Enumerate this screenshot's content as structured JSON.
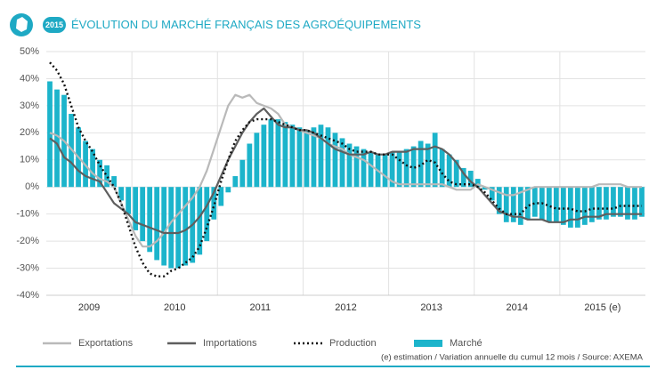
{
  "chart_data": {
    "type": "combo",
    "badge": "2015",
    "title": "ÉVOLUTION DU MARCHÉ FRANÇAIS DES AGROÉQUIPEMENTS",
    "note": "(e) estimation / Variation annuelle du cumul 12 mois / Source: AXEMA",
    "categories": [
      null,
      null,
      null,
      null,
      null,
      null,
      "2009",
      null,
      null,
      null,
      null,
      null,
      null,
      null,
      null,
      null,
      null,
      null,
      "2010",
      null,
      null,
      null,
      null,
      null,
      null,
      null,
      null,
      null,
      null,
      null,
      "2011",
      null,
      null,
      null,
      null,
      null,
      null,
      null,
      null,
      null,
      null,
      null,
      "2012",
      null,
      null,
      null,
      null,
      null,
      null,
      null,
      null,
      null,
      null,
      null,
      "2013",
      null,
      null,
      null,
      null,
      null,
      null,
      null,
      null,
      null,
      null,
      null,
      "2014",
      null,
      null,
      null,
      null,
      null,
      null,
      null,
      null,
      null,
      null,
      null,
      "2015 (e)",
      null,
      null,
      null,
      null,
      null
    ],
    "ylim": [
      -40,
      50
    ],
    "yticks": [
      {
        "value": -40,
        "label": "-40%"
      },
      {
        "value": -30,
        "label": "-30%"
      },
      {
        "value": -20,
        "label": "-20%"
      },
      {
        "value": -10,
        "label": "-10%"
      },
      {
        "value": 0,
        "label": "0%"
      },
      {
        "value": 10,
        "label": "10%"
      },
      {
        "value": 20,
        "label": "20%"
      },
      {
        "value": 30,
        "label": "30%"
      },
      {
        "value": 40,
        "label": "40%"
      },
      {
        "value": 50,
        "label": "50%"
      }
    ],
    "grid": true,
    "series": [
      {
        "name": "Exportations",
        "type": "line",
        "color": "#b9b9b9",
        "line_style": "solid",
        "values": [
          20,
          19,
          17,
          14,
          11,
          8,
          5,
          3,
          2,
          0,
          -6,
          -12,
          -18,
          -22,
          -22,
          -20,
          -17,
          -13,
          -10,
          -7,
          -4,
          0,
          6,
          14,
          22,
          30,
          34,
          33,
          34,
          31,
          30,
          29,
          27,
          23,
          22,
          21,
          20,
          19,
          18,
          16,
          15,
          14,
          12,
          11,
          10,
          8,
          6,
          4,
          2,
          1,
          1,
          1,
          1,
          1,
          1,
          1,
          0,
          -1,
          -1,
          -1,
          1,
          0,
          -1,
          -2,
          -3,
          -3,
          -2,
          -1,
          0,
          0,
          0,
          0,
          0,
          0,
          0,
          0,
          0,
          1,
          1,
          1,
          1,
          0,
          0,
          0
        ]
      },
      {
        "name": "Importations",
        "type": "line",
        "color": "#5e5e5e",
        "line_style": "solid",
        "values": [
          18,
          16,
          11,
          9,
          6,
          4,
          3,
          2,
          -2,
          -6,
          -8,
          -10,
          -13,
          -14,
          -15,
          -16,
          -17,
          -17,
          -17,
          -16,
          -14,
          -11,
          -7,
          -2,
          4,
          10,
          15,
          20,
          24,
          27,
          29,
          26,
          23,
          22,
          22,
          21,
          21,
          20,
          18,
          16,
          14,
          13,
          12,
          12,
          12,
          13,
          12,
          12,
          13,
          13,
          13,
          14,
          14,
          14,
          15,
          14,
          12,
          9,
          5,
          2,
          0,
          -3,
          -6,
          -9,
          -10,
          -11,
          -11,
          -12,
          -12,
          -12,
          -13,
          -13,
          -13,
          -12,
          -12,
          -11,
          -11,
          -11,
          -10,
          -10,
          -10,
          -10,
          -10,
          -10
        ]
      },
      {
        "name": "Production",
        "type": "line",
        "color": "#111111",
        "line_style": "dotted",
        "values": [
          46,
          43,
          38,
          30,
          22,
          17,
          13,
          8,
          4,
          0,
          -6,
          -14,
          -22,
          -28,
          -32,
          -33,
          -33,
          -31,
          -30,
          -28,
          -26,
          -22,
          -15,
          -7,
          2,
          10,
          17,
          21,
          24,
          25,
          25,
          25,
          24,
          23,
          22,
          21,
          21,
          20,
          19,
          18,
          17,
          16,
          14,
          13,
          13,
          13,
          12,
          12,
          12,
          10,
          8,
          7,
          8,
          10,
          9,
          5,
          2,
          1,
          1,
          1,
          0,
          -2,
          -5,
          -8,
          -10,
          -10,
          -10,
          -7,
          -6,
          -6,
          -7,
          -8,
          -8,
          -8,
          -9,
          -9,
          -8,
          -8,
          -8,
          -8,
          -7,
          -7,
          -7,
          -7
        ]
      },
      {
        "name": "Marché",
        "type": "bar",
        "color": "#1cb4cb",
        "values": [
          39,
          36,
          34,
          27,
          22,
          17,
          14,
          10,
          8,
          4,
          -5,
          -10,
          -16,
          -20,
          -24,
          -27,
          -29,
          -30,
          -30,
          -29,
          -28,
          -25,
          -20,
          -12,
          -7,
          -2,
          4,
          10,
          16,
          20,
          23,
          25,
          25,
          24,
          23,
          22,
          21,
          22,
          23,
          22,
          20,
          18,
          16,
          15,
          14,
          13,
          12,
          12,
          13,
          13,
          14,
          15,
          17,
          16,
          20,
          14,
          12,
          10,
          7,
          6,
          3,
          -1,
          -5,
          -10,
          -13,
          -13,
          -14,
          -12,
          -11,
          -12,
          -13,
          -13,
          -14,
          -15,
          -15,
          -14,
          -13,
          -12,
          -12,
          -11,
          -11,
          -12,
          -12,
          -11
        ]
      }
    ]
  }
}
